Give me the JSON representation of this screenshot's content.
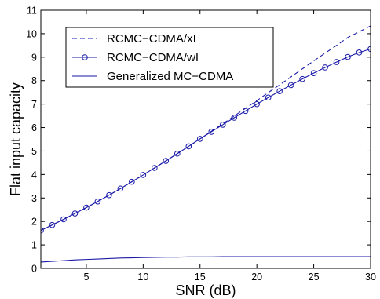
{
  "chart_data": {
    "type": "line",
    "title": "",
    "xlabel": "SNR (dB)",
    "ylabel": "Flat input capacity",
    "xlim": [
      1,
      30
    ],
    "ylim": [
      0,
      11
    ],
    "xticks": [
      5,
      10,
      15,
      20,
      25,
      30
    ],
    "yticks": [
      0,
      1,
      2,
      3,
      4,
      5,
      6,
      7,
      8,
      9,
      10,
      11
    ],
    "grid": false,
    "legend_position": "top-left",
    "colors": {
      "series": "#1a1aa8",
      "axis": "#000000"
    },
    "series": [
      {
        "name": "RCMC−CDMA/xI",
        "style": "dashed",
        "x": [
          1,
          2,
          3,
          4,
          5,
          6,
          7,
          8,
          9,
          10,
          11,
          12,
          13,
          14,
          15,
          16,
          17,
          18,
          19,
          20,
          21,
          22,
          23,
          24,
          25,
          26,
          27,
          28,
          29,
          30
        ],
        "y": [
          1.62,
          1.85,
          2.09,
          2.34,
          2.59,
          2.85,
          3.12,
          3.4,
          3.69,
          3.98,
          4.28,
          4.58,
          4.89,
          5.2,
          5.52,
          5.84,
          6.16,
          6.49,
          6.82,
          7.15,
          7.49,
          7.82,
          8.16,
          8.5,
          8.84,
          9.17,
          9.5,
          9.84,
          10.08,
          10.33
        ]
      },
      {
        "name": "RCMC−CDMA/wI",
        "style": "solid-circle",
        "x": [
          1,
          2,
          3,
          4,
          5,
          6,
          7,
          8,
          9,
          10,
          11,
          12,
          13,
          14,
          15,
          16,
          17,
          18,
          19,
          20,
          21,
          22,
          23,
          24,
          25,
          26,
          27,
          28,
          29,
          30
        ],
        "y": [
          1.62,
          1.85,
          2.09,
          2.34,
          2.59,
          2.85,
          3.12,
          3.4,
          3.69,
          3.98,
          4.28,
          4.58,
          4.89,
          5.2,
          5.52,
          5.82,
          6.12,
          6.42,
          6.71,
          7.0,
          7.28,
          7.55,
          7.81,
          8.07,
          8.32,
          8.56,
          8.79,
          9.01,
          9.2,
          9.35
        ]
      },
      {
        "name": "Generalized MC−CDMA",
        "style": "solid",
        "x": [
          1,
          2,
          3,
          4,
          5,
          6,
          7,
          8,
          9,
          10,
          11,
          12,
          13,
          14,
          15,
          16,
          17,
          18,
          19,
          20,
          21,
          22,
          23,
          24,
          25,
          26,
          27,
          28,
          29,
          30
        ],
        "y": [
          0.27,
          0.3,
          0.33,
          0.36,
          0.38,
          0.4,
          0.42,
          0.44,
          0.45,
          0.46,
          0.47,
          0.48,
          0.48,
          0.49,
          0.49,
          0.49,
          0.5,
          0.5,
          0.5,
          0.5,
          0.5,
          0.5,
          0.5,
          0.5,
          0.5,
          0.5,
          0.5,
          0.5,
          0.5,
          0.5
        ]
      }
    ]
  }
}
